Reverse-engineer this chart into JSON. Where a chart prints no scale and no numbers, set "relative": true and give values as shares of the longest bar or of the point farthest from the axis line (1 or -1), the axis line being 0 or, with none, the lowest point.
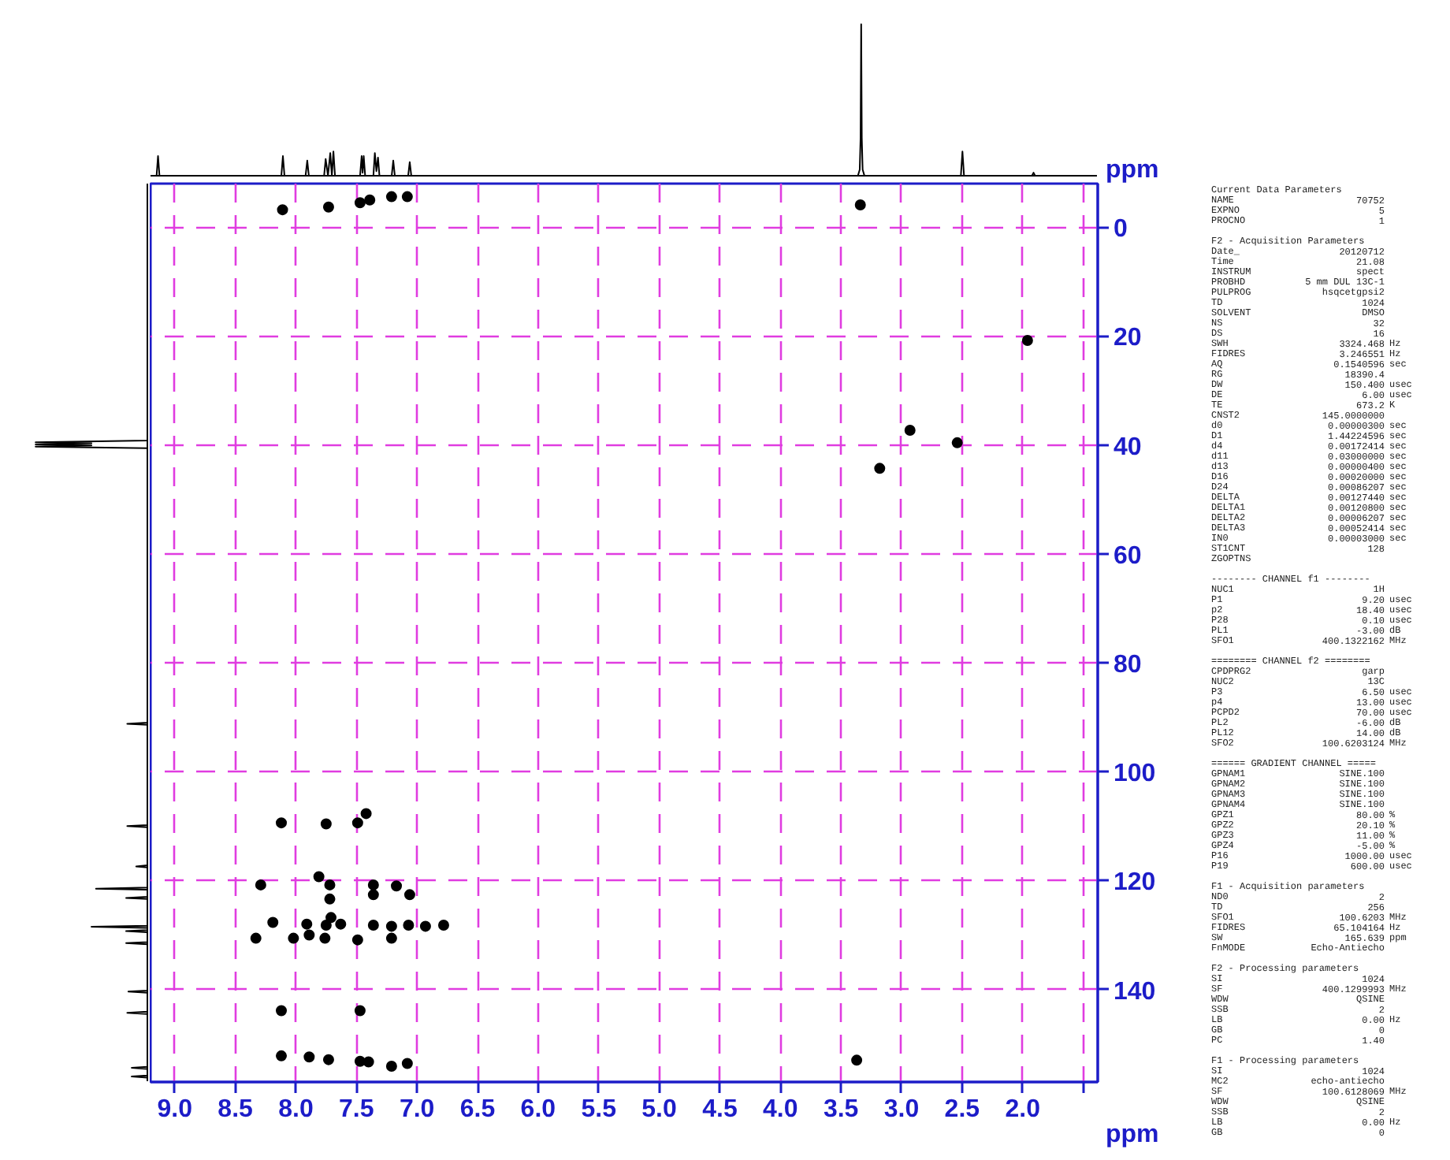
{
  "chart_data": [
    {
      "type": "line",
      "relative": true,
      "tick_labels": false,
      "color": "#000000",
      "xlim": [
        9.2,
        1.38
      ],
      "x": [
        9.2,
        9.15,
        9.138,
        9.126,
        8.12,
        8.107,
        8.094,
        7.92,
        7.906,
        7.893,
        7.767,
        7.754,
        7.735,
        7.716,
        7.703,
        7.69,
        7.677,
        7.47,
        7.457,
        7.449,
        7.44,
        7.428,
        7.36,
        7.348,
        7.335,
        7.322,
        7.31,
        7.209,
        7.196,
        7.183,
        7.073,
        7.06,
        7.047,
        3.36,
        3.345,
        3.338,
        3.333,
        3.328,
        3.321,
        3.306,
        2.51,
        2.497,
        2.484,
        1.923,
        1.91,
        1.897,
        1.38
      ],
      "values": [
        0,
        0,
        0.13,
        0,
        0,
        0.13,
        0,
        0,
        0.1,
        0,
        0,
        0.11,
        0,
        0.15,
        0,
        0.16,
        0,
        0,
        0.13,
        0.02,
        0.13,
        0,
        0,
        0.15,
        0.03,
        0.12,
        0,
        0,
        0.1,
        0,
        0,
        0.09,
        0,
        0,
        0.04,
        0.25,
        1.0,
        0.25,
        0.04,
        0,
        0,
        0.16,
        0,
        0,
        0.02,
        0,
        0
      ]
    },
    {
      "type": "line",
      "orientation": "horizontal",
      "relative": true,
      "tick_labels": false,
      "color": "#000000",
      "ylim": [
        157,
        -8
      ],
      "x": [
        -8,
        39.2,
        39.5,
        39.7,
        39.9,
        40.1,
        40.3,
        40.6,
        91.0,
        91.2,
        91.4,
        109.8,
        110.0,
        110.2,
        117.2,
        117.4,
        117.6,
        121.3,
        121.5,
        121.7,
        123.0,
        123.2,
        123.4,
        128.3,
        128.5,
        128.7,
        129.1,
        129.3,
        129.5,
        131.3,
        131.5,
        131.7,
        140.2,
        140.4,
        140.6,
        144.1,
        144.3,
        144.5,
        154.2,
        154.4,
        154.6,
        155.8,
        156.0,
        156.2,
        157
      ],
      "values": [
        0,
        0,
        -1.0,
        -0.5,
        -1.0,
        -0.5,
        -1.0,
        0,
        0,
        -0.18,
        0,
        0,
        -0.18,
        0,
        0,
        -0.1,
        0,
        0,
        -0.46,
        0,
        0,
        -0.19,
        0,
        0,
        -0.5,
        0,
        0,
        -0.19,
        0,
        0,
        -0.19,
        0,
        0,
        -0.17,
        0,
        0,
        -0.18,
        0,
        0,
        -0.14,
        0,
        0,
        -0.14,
        0,
        0
      ]
    },
    {
      "type": "scatter",
      "marker": "circle",
      "color": "#000000",
      "xlabel": "ppm",
      "ylabel": "ppm",
      "grid": true,
      "xlim": [
        9.2,
        1.38
      ],
      "ylim": [
        157,
        -8
      ],
      "xticks": [
        {
          "value": 9.0,
          "label": "9.0"
        },
        8.5,
        {
          "value": 8.0,
          "label": "8.0"
        },
        7.5,
        {
          "value": 7.0,
          "label": "7.0"
        },
        6.5,
        {
          "value": 6.0,
          "label": "6.0"
        },
        5.5,
        {
          "value": 5.0,
          "label": "5.0"
        },
        4.5,
        {
          "value": 4.0,
          "label": "4.0"
        },
        3.5,
        {
          "value": 3.0,
          "label": "3.0"
        },
        2.5,
        {
          "value": 2.0,
          "label": "2.0"
        },
        {
          "value": 1.5,
          "label": null
        }
      ],
      "yticks": [
        0,
        20,
        40,
        60,
        80,
        100,
        120,
        140
      ],
      "x": [
        8.11,
        7.73,
        7.47,
        7.39,
        7.21,
        7.08,
        3.34,
        1.96,
        2.93,
        3.18,
        2.54,
        8.12,
        7.75,
        7.49,
        7.42,
        8.29,
        7.81,
        7.72,
        7.72,
        7.36,
        7.36,
        7.17,
        7.06,
        8.19,
        8.33,
        8.02,
        7.91,
        7.89,
        7.75,
        7.71,
        7.76,
        7.63,
        7.49,
        7.36,
        7.21,
        7.21,
        7.07,
        6.93,
        6.78,
        8.12,
        7.47,
        8.12,
        7.89,
        7.73,
        7.47,
        7.4,
        7.21,
        7.08,
        3.37
      ],
      "values": [
        -3.2,
        -3.7,
        -4.5,
        -5.0,
        -5.6,
        -5.6,
        -4.1,
        20.8,
        37.3,
        44.3,
        39.6,
        109.4,
        109.6,
        109.4,
        107.7,
        120.8,
        119.3,
        120.8,
        123.4,
        120.8,
        122.6,
        121.0,
        122.6,
        127.7,
        130.6,
        130.6,
        128.0,
        130.0,
        128.2,
        126.8,
        130.6,
        128.0,
        130.9,
        128.2,
        128.4,
        130.6,
        128.2,
        128.4,
        128.2,
        143.9,
        143.9,
        152.2,
        152.4,
        152.9,
        153.2,
        153.3,
        154.1,
        153.6,
        153.0
      ]
    },
    {
      "type": "other",
      "annotations": [
        "Current Data Parameters",
        "NAME\t70752",
        "EXPNO\t5",
        "PROCNO\t1",
        "F2 - Acquisition Parameters",
        "Date_\t20120712",
        "Time\t21.08",
        "INSTRUM\tspect",
        "PROBHD\t5 mm DUL 13C-1",
        "PULPROG\thsqcetgpsi2",
        "TD\t1024",
        "SOLVENT\tDMSO",
        "NS\t32",
        "DS\t16",
        "SWH\t3324.468\tHz",
        "FIDRES\t3.246551\tHz",
        "AQ\t0.1540596\tsec",
        "RG\t18390.4",
        "DW\t150.400\tusec",
        "DE\t6.00\tusec",
        "TE\t673.2\tK",
        "CNST2\t145.0000000",
        "d0\t0.00000300\tsec",
        "D1\t1.44224596\tsec",
        "d4\t0.00172414\tsec",
        "d11\t0.03000000\tsec",
        "d13\t0.00000400\tsec",
        "D16\t0.00020000\tsec",
        "D24\t0.00086207\tsec",
        "DELTA\t0.00127440\tsec",
        "DELTA1\t0.00120800\tsec",
        "DELTA2\t0.00006207\tsec",
        "DELTA3\t0.00052414\tsec",
        "IN0\t0.00003000\tsec",
        "ST1CNT\t128",
        "ZGOPTNS\t",
        "-------- CHANNEL f1 --------",
        "NUC1\t1H",
        "P1\t9.20\tusec",
        "p2\t18.40\tusec",
        "P28\t0.10\tusec",
        "PL1\t-3.00\tdB",
        "SFO1\t400.1322162\tMHz",
        "======== CHANNEL f2 ========",
        "CPDPRG2\tgarp",
        "NUC2\t13C",
        "P3\t6.50\tusec",
        "p4\t13.00\tusec",
        "PCPD2\t70.00\tusec",
        "PL2\t-6.00\tdB",
        "PL12\t14.00\tdB",
        "SFO2\t100.6203124\tMHz",
        "====== GRADIENT CHANNEL =====",
        "GPNAM1\tSINE.100",
        "GPNAM2\tSINE.100",
        "GPNAM3\tSINE.100",
        "GPNAM4\tSINE.100",
        "GPZ1\t80.00\t%",
        "GPZ2\t20.10\t%",
        "GPZ3\t11.00\t%",
        "GPZ4\t-5.00\t%",
        "P16\t1000.00\tusec",
        "P19\t600.00\tusec",
        "F1 - Acquisition parameters",
        "ND0\t2",
        "TD\t256",
        "SFO1\t100.6203\tMHz",
        "FIDRES\t65.104164\tHz",
        "SW\t165.639\tppm",
        "FnMODE\tEcho-Antiecho",
        "F2 - Processing parameters",
        "SI\t1024",
        "SF\t400.1299993\tMHz",
        "WDW\tQSINE",
        "SSB\t2",
        "LB\t0.00\tHz",
        "GB\t0",
        "PC\t1.40",
        "F1 - Processing parameters",
        "SI\t1024",
        "MC2\techo-antiecho",
        "SF\t100.6128069\tMHz",
        "WDW\tQSINE",
        "SSB\t2",
        "LB\t0.00\tHz",
        "GB\t0"
      ]
    }
  ]
}
